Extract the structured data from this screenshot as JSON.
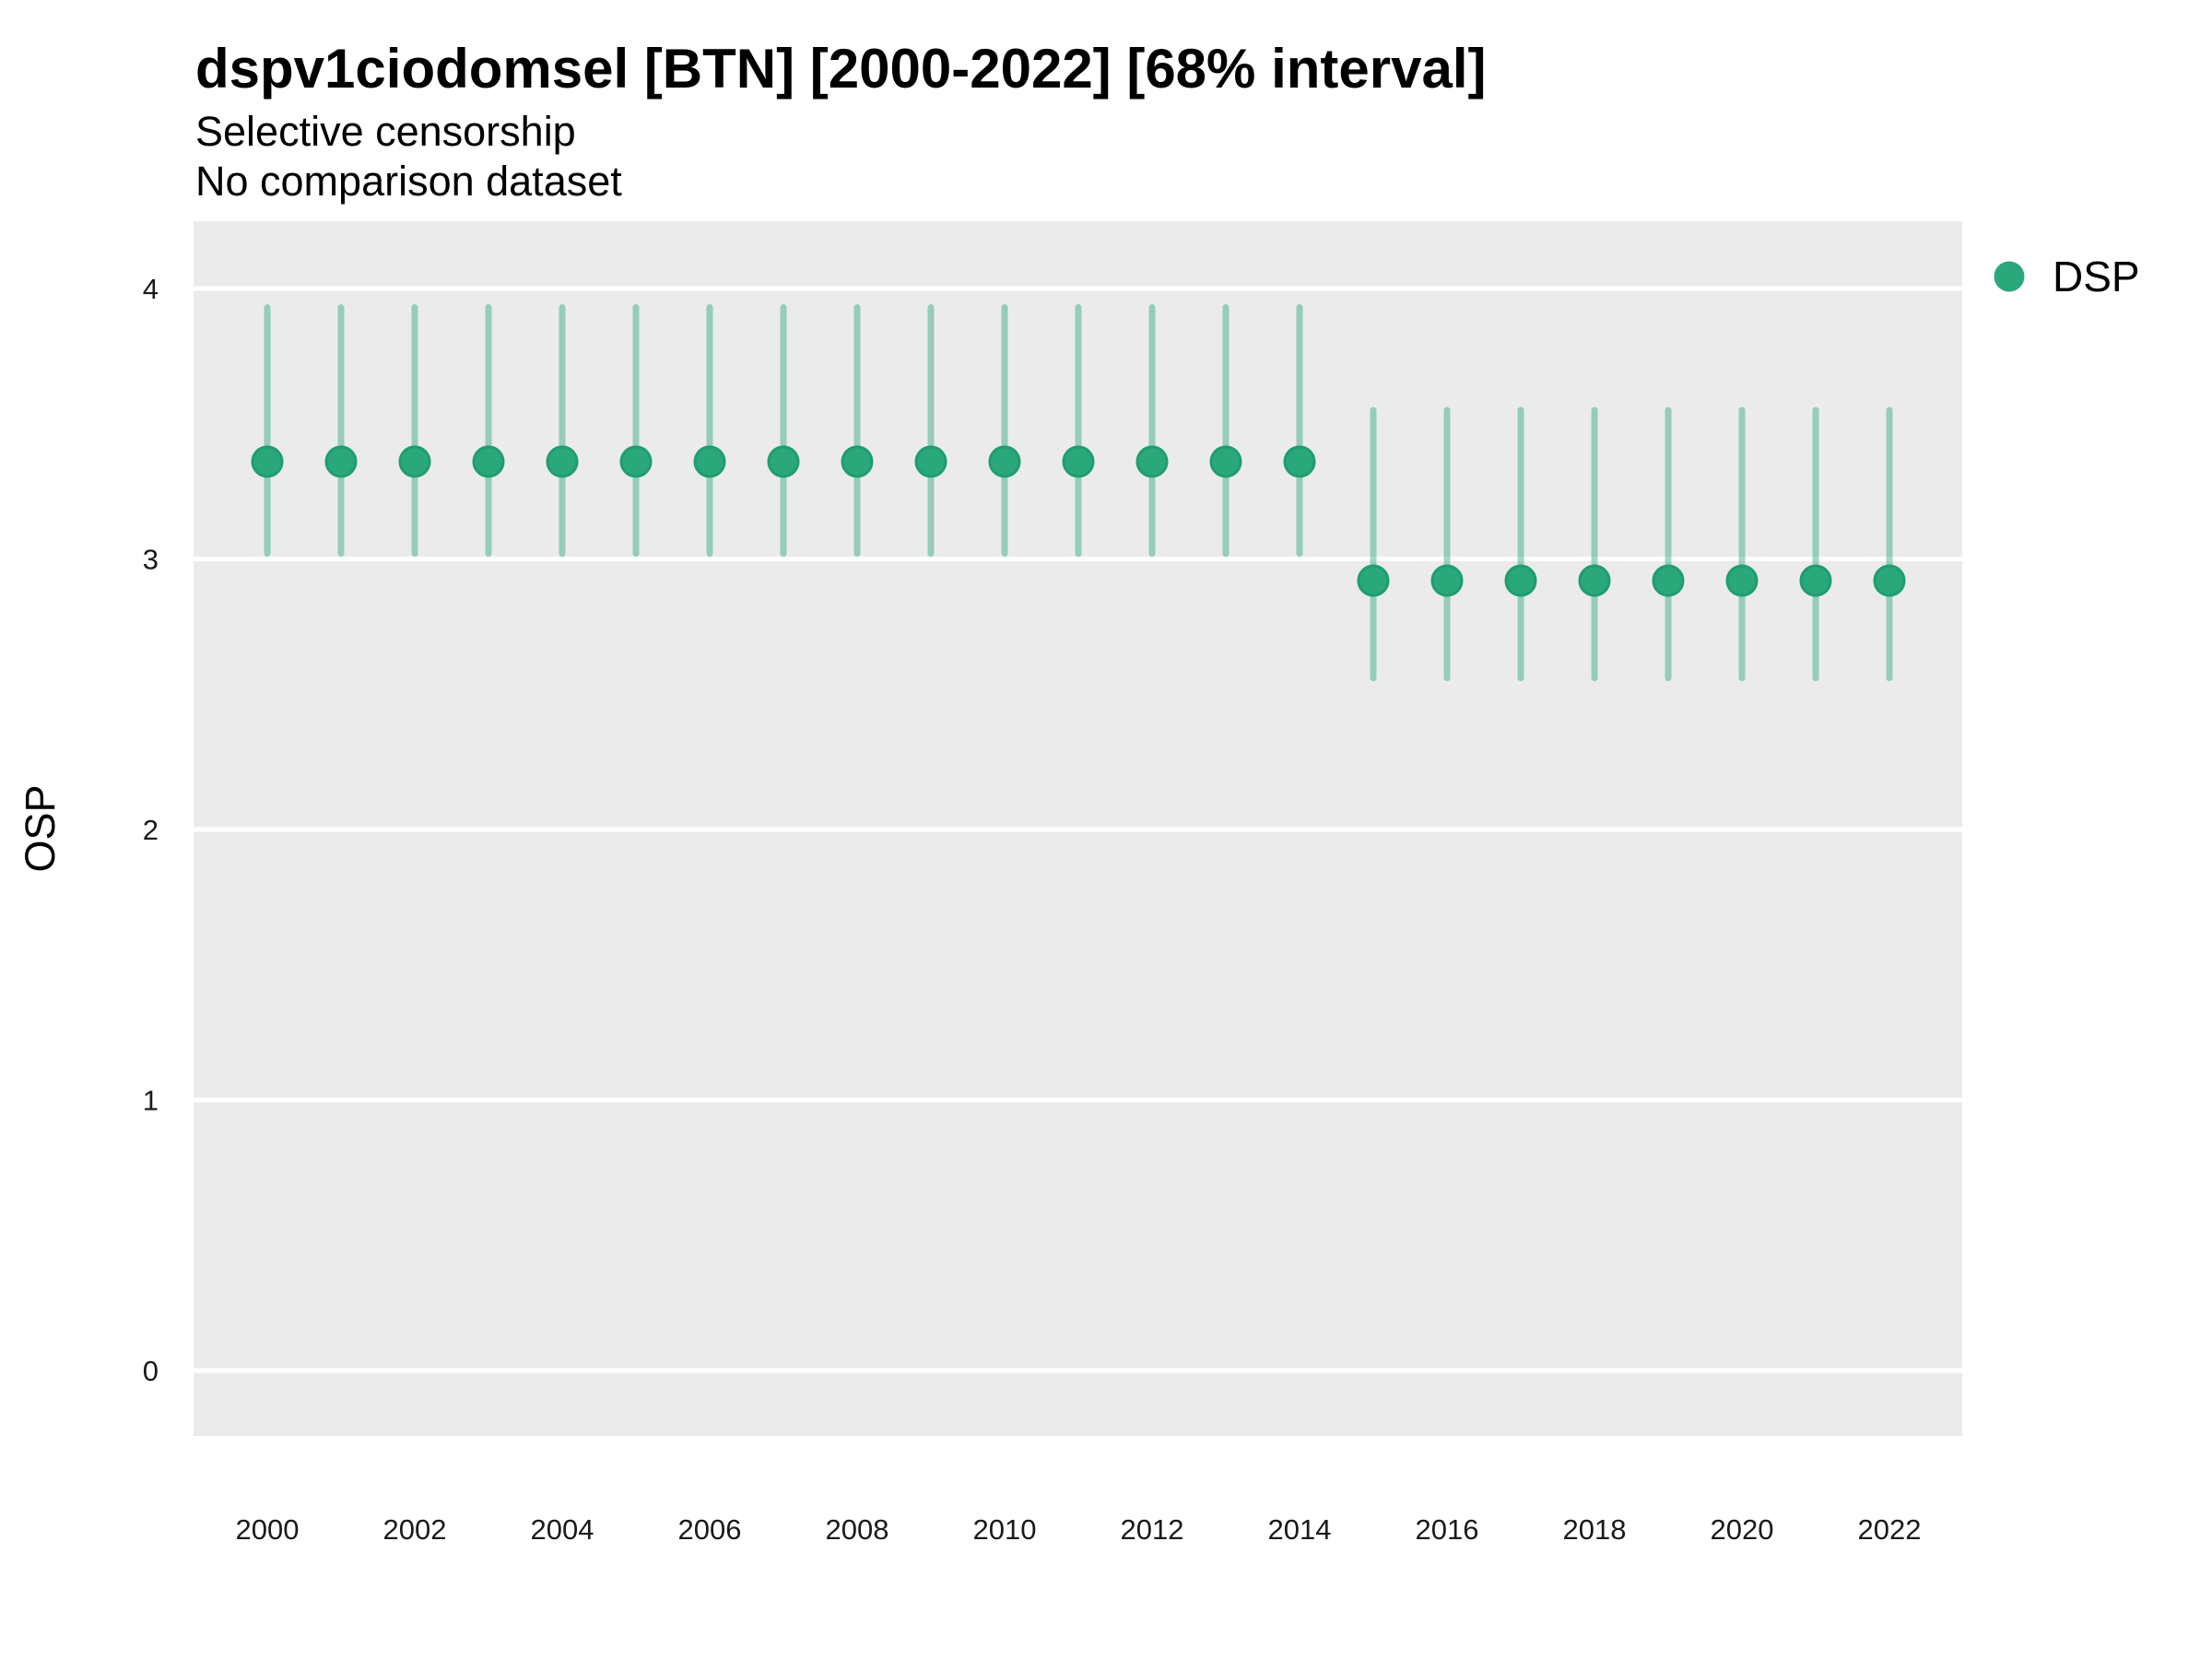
{
  "chart_data": {
    "type": "scatter",
    "variant": "pointrange",
    "title": "dspv1ciodomsel [BTN] [2000-2022] [68% interval]",
    "subtitle": [
      "Selective censorship",
      "No comparison dataset"
    ],
    "xlabel": "",
    "ylabel": "OSP",
    "x_ticks": [
      2000,
      2002,
      2004,
      2006,
      2008,
      2010,
      2012,
      2014,
      2016,
      2018,
      2020,
      2022
    ],
    "y_ticks": [
      0,
      1,
      2,
      3,
      4
    ],
    "xlim": [
      1999,
      2023
    ],
    "ylim": [
      -0.24,
      4.24
    ],
    "grid": "major-horizontal-only",
    "grid_color": "#ffffff",
    "panel_bg": "#ebebeb",
    "legend_position": "right",
    "interval_level": "68%",
    "series": [
      {
        "name": "DSP",
        "color": "#2aa87c",
        "edge_color": "#1f9d6e",
        "interval_opacity": 0.45,
        "points": [
          {
            "x": 2000,
            "y": 3.36,
            "lo": 3.02,
            "hi": 3.93
          },
          {
            "x": 2001,
            "y": 3.36,
            "lo": 3.02,
            "hi": 3.93
          },
          {
            "x": 2002,
            "y": 3.36,
            "lo": 3.02,
            "hi": 3.93
          },
          {
            "x": 2003,
            "y": 3.36,
            "lo": 3.02,
            "hi": 3.93
          },
          {
            "x": 2004,
            "y": 3.36,
            "lo": 3.02,
            "hi": 3.93
          },
          {
            "x": 2005,
            "y": 3.36,
            "lo": 3.02,
            "hi": 3.93
          },
          {
            "x": 2006,
            "y": 3.36,
            "lo": 3.02,
            "hi": 3.93
          },
          {
            "x": 2007,
            "y": 3.36,
            "lo": 3.02,
            "hi": 3.93
          },
          {
            "x": 2008,
            "y": 3.36,
            "lo": 3.02,
            "hi": 3.93
          },
          {
            "x": 2009,
            "y": 3.36,
            "lo": 3.02,
            "hi": 3.93
          },
          {
            "x": 2010,
            "y": 3.36,
            "lo": 3.02,
            "hi": 3.93
          },
          {
            "x": 2011,
            "y": 3.36,
            "lo": 3.02,
            "hi": 3.93
          },
          {
            "x": 2012,
            "y": 3.36,
            "lo": 3.02,
            "hi": 3.93
          },
          {
            "x": 2013,
            "y": 3.36,
            "lo": 3.02,
            "hi": 3.93
          },
          {
            "x": 2014,
            "y": 3.36,
            "lo": 3.02,
            "hi": 3.93
          },
          {
            "x": 2015,
            "y": 2.92,
            "lo": 2.56,
            "hi": 3.55
          },
          {
            "x": 2016,
            "y": 2.92,
            "lo": 2.56,
            "hi": 3.55
          },
          {
            "x": 2017,
            "y": 2.92,
            "lo": 2.56,
            "hi": 3.55
          },
          {
            "x": 2018,
            "y": 2.92,
            "lo": 2.56,
            "hi": 3.55
          },
          {
            "x": 2019,
            "y": 2.92,
            "lo": 2.56,
            "hi": 3.55
          },
          {
            "x": 2020,
            "y": 2.92,
            "lo": 2.56,
            "hi": 3.55
          },
          {
            "x": 2021,
            "y": 2.92,
            "lo": 2.56,
            "hi": 3.55
          },
          {
            "x": 2022,
            "y": 2.92,
            "lo": 2.56,
            "hi": 3.55
          }
        ]
      }
    ]
  }
}
